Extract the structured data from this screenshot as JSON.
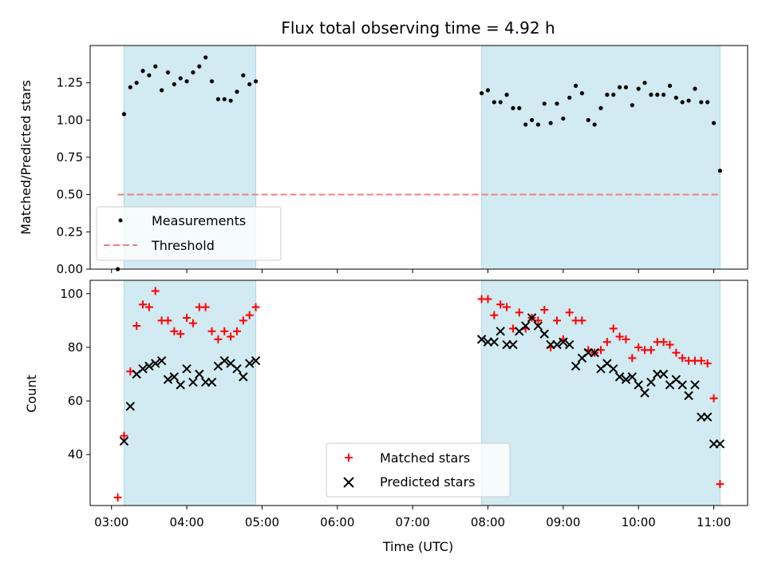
{
  "title": "Flux total observing time = 4.92 h",
  "colors": {
    "shade": "#add8e6",
    "threshold": "#f08080",
    "matched": "#ff0000",
    "predicted": "#000000",
    "measurement": "#000000"
  },
  "chart_data": [
    {
      "type": "scatter",
      "ylabel": "Matched/Predicted stars",
      "xlabel": "",
      "xlim": [
        "02:43",
        "11:27"
      ],
      "ylim": [
        0,
        1.5
      ],
      "grid": false,
      "legend_position": "lower-left",
      "yticks": [
        "0.00",
        "0.25",
        "0.50",
        "0.75",
        "1.00",
        "1.25"
      ],
      "shaded_intervals": [
        [
          "03:10",
          "04:55"
        ],
        [
          "07:55",
          "11:05"
        ]
      ],
      "threshold": {
        "name": "Threshold",
        "y": 0.5,
        "x": [
          "03:05",
          "11:05"
        ]
      },
      "series": [
        {
          "name": "Measurements",
          "marker": "dot",
          "x": [
            "03:05",
            "03:10",
            "03:15",
            "03:20",
            "03:25",
            "03:30",
            "03:35",
            "03:40",
            "03:45",
            "03:50",
            "03:55",
            "04:00",
            "04:05",
            "04:10",
            "04:15",
            "04:20",
            "04:25",
            "04:30",
            "04:35",
            "04:40",
            "04:45",
            "04:50",
            "04:55",
            "07:55",
            "08:00",
            "08:05",
            "08:10",
            "08:15",
            "08:20",
            "08:25",
            "08:30",
            "08:35",
            "08:40",
            "08:45",
            "08:50",
            "08:55",
            "09:00",
            "09:05",
            "09:10",
            "09:15",
            "09:20",
            "09:25",
            "09:30",
            "09:35",
            "09:40",
            "09:45",
            "09:50",
            "09:55",
            "10:00",
            "10:05",
            "10:10",
            "10:15",
            "10:20",
            "10:25",
            "10:30",
            "10:35",
            "10:40",
            "10:45",
            "10:50",
            "10:55",
            "11:00",
            "11:05"
          ],
          "y": [
            0.0,
            1.04,
            1.22,
            1.25,
            1.33,
            1.3,
            1.36,
            1.2,
            1.32,
            1.24,
            1.28,
            1.26,
            1.32,
            1.36,
            1.42,
            1.26,
            1.14,
            1.14,
            1.13,
            1.19,
            1.3,
            1.24,
            1.26,
            1.18,
            1.2,
            1.12,
            1.12,
            1.17,
            1.08,
            1.08,
            0.97,
            1.0,
            0.97,
            1.11,
            0.98,
            1.11,
            1.01,
            1.15,
            1.23,
            1.18,
            1.0,
            0.97,
            1.08,
            1.17,
            1.17,
            1.22,
            1.22,
            1.1,
            1.21,
            1.25,
            1.17,
            1.17,
            1.17,
            1.23,
            1.15,
            1.12,
            1.13,
            1.21,
            1.12,
            1.12,
            0.98,
            0.66
          ]
        }
      ]
    },
    {
      "type": "scatter",
      "ylabel": "Count",
      "xlabel": "Time (UTC)",
      "xlim": [
        "02:43",
        "11:27"
      ],
      "ylim": [
        21,
        105
      ],
      "grid": false,
      "legend_position": "lower-center",
      "yticks": [
        "40",
        "60",
        "80",
        "100"
      ],
      "xticks": [
        "03:00",
        "04:00",
        "05:00",
        "06:00",
        "07:00",
        "08:00",
        "09:00",
        "10:00",
        "11:00"
      ],
      "shaded_intervals": [
        [
          "03:10",
          "04:55"
        ],
        [
          "07:55",
          "11:05"
        ]
      ],
      "series": [
        {
          "name": "Matched stars",
          "marker": "plus",
          "x": [
            "03:05",
            "03:10",
            "03:15",
            "03:20",
            "03:25",
            "03:30",
            "03:35",
            "03:40",
            "03:45",
            "03:50",
            "03:55",
            "04:00",
            "04:05",
            "04:10",
            "04:15",
            "04:20",
            "04:25",
            "04:30",
            "04:35",
            "04:40",
            "04:45",
            "04:50",
            "04:55",
            "07:55",
            "08:00",
            "08:05",
            "08:10",
            "08:15",
            "08:20",
            "08:25",
            "08:30",
            "08:35",
            "08:40",
            "08:45",
            "08:50",
            "08:55",
            "09:00",
            "09:05",
            "09:10",
            "09:15",
            "09:20",
            "09:25",
            "09:30",
            "09:35",
            "09:40",
            "09:45",
            "09:50",
            "09:55",
            "10:00",
            "10:05",
            "10:10",
            "10:15",
            "10:20",
            "10:25",
            "10:30",
            "10:35",
            "10:40",
            "10:45",
            "10:50",
            "10:55",
            "11:00",
            "11:05"
          ],
          "y": [
            24,
            47,
            71,
            88,
            96,
            95,
            101,
            90,
            90,
            86,
            85,
            91,
            89,
            95,
            95,
            86,
            83,
            86,
            84,
            86,
            90,
            92,
            95,
            98,
            98,
            92,
            96,
            95,
            87,
            93,
            87,
            91,
            90,
            94,
            80,
            90,
            83,
            93,
            90,
            90,
            79,
            78,
            79,
            82,
            87,
            84,
            83,
            76,
            80,
            79,
            79,
            82,
            82,
            81,
            78,
            76,
            75,
            75,
            75,
            74,
            61,
            29
          ]
        },
        {
          "name": "Predicted stars",
          "marker": "x",
          "x": [
            "03:10",
            "03:15",
            "03:20",
            "03:25",
            "03:30",
            "03:35",
            "03:40",
            "03:45",
            "03:50",
            "03:55",
            "04:00",
            "04:05",
            "04:10",
            "04:15",
            "04:20",
            "04:25",
            "04:30",
            "04:35",
            "04:40",
            "04:45",
            "04:50",
            "04:55",
            "07:55",
            "08:00",
            "08:05",
            "08:10",
            "08:15",
            "08:20",
            "08:25",
            "08:30",
            "08:35",
            "08:40",
            "08:45",
            "08:50",
            "08:55",
            "09:00",
            "09:05",
            "09:10",
            "09:15",
            "09:20",
            "09:25",
            "09:30",
            "09:35",
            "09:40",
            "09:45",
            "09:50",
            "09:55",
            "10:00",
            "10:05",
            "10:10",
            "10:15",
            "10:20",
            "10:25",
            "10:30",
            "10:35",
            "10:40",
            "10:45",
            "10:50",
            "10:55",
            "11:00",
            "11:05"
          ],
          "y": [
            45,
            58,
            70,
            72,
            73,
            74,
            75,
            68,
            69,
            66,
            72,
            67,
            70,
            67,
            67,
            73,
            75,
            74,
            72,
            69,
            74,
            75,
            83,
            82,
            82,
            86,
            81,
            81,
            86,
            88,
            91,
            88,
            85,
            81,
            81,
            82,
            81,
            73,
            76,
            78,
            78,
            72,
            74,
            72,
            69,
            68,
            69,
            66,
            63,
            67,
            70,
            70,
            66,
            68,
            66,
            62,
            66,
            54,
            54,
            44,
            44
          ]
        }
      ]
    }
  ]
}
